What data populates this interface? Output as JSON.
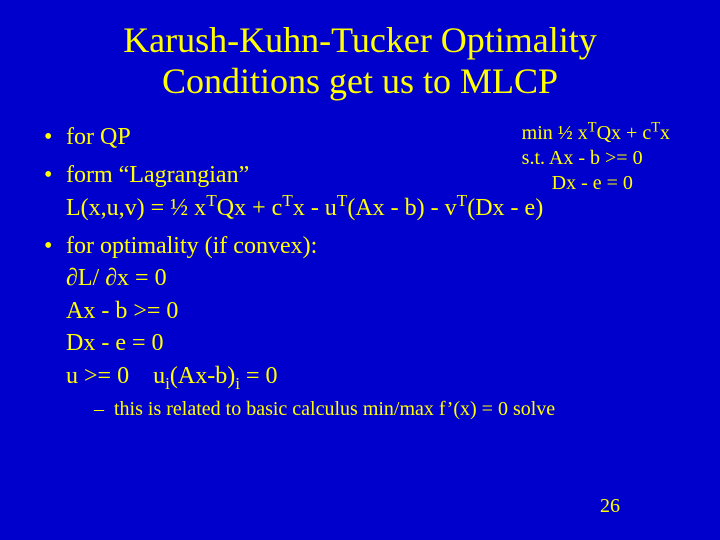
{
  "colors": {
    "background": "#0000cc",
    "text": "#ffff00"
  },
  "title": {
    "line1": "Karush-Kuhn-Tucker Optimality",
    "line2": "Conditions get us to MLCP"
  },
  "sidebox": {
    "line1_html": "min ½ x<sup>T</sup>Qx + c<sup>T</sup>x",
    "line2": "s.t. Ax - b >= 0",
    "line3": "Dx - e   = 0"
  },
  "bullets": {
    "b1": "for QP",
    "b2": {
      "line1": "form “Lagrangian”",
      "line2_html": "L(x,u,v) = ½ x<sup>T</sup>Qx + c<sup>T</sup>x - u<sup>T</sup>(Ax - b) - v<sup>T</sup>(Dx - e)"
    },
    "b3": {
      "line1": "for optimality (if convex):",
      "line2": "∂L/ ∂x = 0",
      "line3": "Ax - b >= 0",
      "line4": "Dx - e   = 0",
      "line5_html": "u >= 0 &nbsp;&nbsp; u<sub>i</sub>(Ax-b)<sub>i</sub> = 0"
    },
    "sub1": "this is related to basic calculus min/max f’(x) = 0 solve"
  },
  "pagenum": "26"
}
